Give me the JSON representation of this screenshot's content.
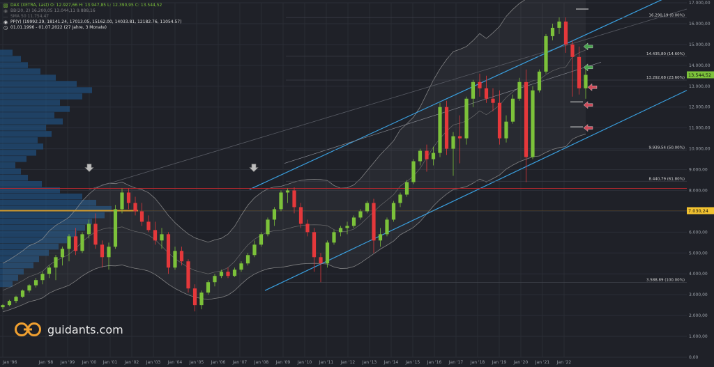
{
  "legend": {
    "main": "DAX (XETRA, Last)  O: 12.927,66  H: 13.947,85  L: 12.390,95  C: 13.544,52",
    "bb": "BB(20, 2)  16.200,05  13.044,11  9.888,16",
    "sma": "SMA 50  11.754,47",
    "pp": "PP(Y)  (19992.29, 18141.24, 17013.05, 15162.00, 14033.81, 12182.76, 11054.57)",
    "range": "01.01.1996 - 01.07.2022  (27 Jahre, 3 Monate)"
  },
  "logo_text": "guidants.com",
  "colors": {
    "background": "#1f2128",
    "up": "#7cc23a",
    "down": "#e5383b",
    "channel": "#3aa0e0",
    "bollinger": "#9a9a9a",
    "price_badge": "#7cc23a",
    "level_badge": "#f2c230",
    "red_line": "#b8282e",
    "orange_line": "#d49a2a",
    "green_arrow": "#4caf50",
    "red_arrow": "#e05060"
  },
  "icons": [
    "candle-icon",
    "eye-icon",
    "chart-icon",
    "clock-icon",
    "down-arrow-icon"
  ],
  "chart_data": {
    "type": "candlestick",
    "title": "DAX (XETRA, Last)",
    "y_ticks": [
      "17.000,00",
      "16.000,00",
      "15.000,00",
      "14.000,00",
      "13.000,00",
      "12.000,00",
      "11.000,00",
      "10.000,00",
      "9.000,00",
      "8.000,00",
      "7.000,00",
      "6.000,00",
      "5.000,00",
      "4.000,00",
      "3.000,00",
      "2.000,00",
      "1.000,00",
      "0,00"
    ],
    "x_ticks": [
      "Jan '96",
      "Jan '98",
      "Jan '99",
      "Jan '00",
      "Jan '01",
      "Jan '02",
      "Jan '03",
      "Jan '04",
      "Jan '05",
      "Jan '06",
      "Jan '07",
      "Jan '08",
      "Jan '09",
      "Jan '10",
      "Jan '11",
      "Jan '12",
      "Jan '13",
      "Jan '14",
      "Jan '15",
      "Jan '16",
      "Jan '17",
      "Jan '18",
      "Jan '19",
      "Jan '20",
      "Jan '21",
      "Jan '22"
    ],
    "ylim": [
      0,
      17000
    ],
    "price_badge": "13.544,52",
    "level_badge": "7.030,24",
    "fib_levels": [
      {
        "label": "16.290,19 (0.00%)",
        "value": 16290.19
      },
      {
        "label": "14.435,80 (14.60%)",
        "value": 14435.8
      },
      {
        "label": "13.292,68 (23.60%)",
        "value": 13292.68
      },
      {
        "label": "9.939,54 (50.00%)",
        "value": 9939.54
      },
      {
        "label": "8.440,79 (61.80%)",
        "value": 8440.79
      },
      {
        "label": "3.588,89 (100.00%)",
        "value": 3588.89
      }
    ],
    "horizontal_lines": [
      {
        "value": 8100,
        "role": "resistance"
      },
      {
        "value": 7030,
        "role": "level"
      }
    ],
    "candles": [
      {
        "o": 2400,
        "h": 2550,
        "l": 2300,
        "c": 2500
      },
      {
        "o": 2500,
        "h": 2750,
        "l": 2450,
        "c": 2700
      },
      {
        "o": 2700,
        "h": 2950,
        "l": 2600,
        "c": 2900
      },
      {
        "o": 2900,
        "h": 3250,
        "l": 2850,
        "c": 3200
      },
      {
        "o": 3200,
        "h": 3500,
        "l": 3100,
        "c": 3450
      },
      {
        "o": 3450,
        "h": 3800,
        "l": 3350,
        "c": 3700
      },
      {
        "o": 3700,
        "h": 4100,
        "l": 3500,
        "c": 4000
      },
      {
        "o": 4000,
        "h": 4400,
        "l": 3800,
        "c": 4300
      },
      {
        "o": 4300,
        "h": 4900,
        "l": 3700,
        "c": 4800
      },
      {
        "o": 4800,
        "h": 5300,
        "l": 4400,
        "c": 5200
      },
      {
        "o": 5200,
        "h": 5900,
        "l": 4600,
        "c": 5800
      },
      {
        "o": 5800,
        "h": 6200,
        "l": 4900,
        "c": 5100
      },
      {
        "o": 5100,
        "h": 6000,
        "l": 5000,
        "c": 5900
      },
      {
        "o": 5900,
        "h": 6600,
        "l": 5700,
        "c": 6400
      },
      {
        "o": 6400,
        "h": 6900,
        "l": 5200,
        "c": 5400
      },
      {
        "o": 5400,
        "h": 5600,
        "l": 4300,
        "c": 4800
      },
      {
        "o": 4800,
        "h": 5500,
        "l": 4200,
        "c": 5300
      },
      {
        "o": 5300,
        "h": 7300,
        "l": 5200,
        "c": 7100
      },
      {
        "o": 7100,
        "h": 8100,
        "l": 6900,
        "c": 7900
      },
      {
        "o": 7900,
        "h": 8100,
        "l": 7100,
        "c": 7400
      },
      {
        "o": 7400,
        "h": 7700,
        "l": 6800,
        "c": 7000
      },
      {
        "o": 7000,
        "h": 7400,
        "l": 6300,
        "c": 6500
      },
      {
        "o": 6500,
        "h": 6800,
        "l": 6000,
        "c": 6100
      },
      {
        "o": 6100,
        "h": 6500,
        "l": 5400,
        "c": 5600
      },
      {
        "o": 5600,
        "h": 6200,
        "l": 5200,
        "c": 5900
      },
      {
        "o": 5900,
        "h": 6000,
        "l": 4000,
        "c": 4300
      },
      {
        "o": 4300,
        "h": 5300,
        "l": 4200,
        "c": 5100
      },
      {
        "o": 5100,
        "h": 5300,
        "l": 4400,
        "c": 4600
      },
      {
        "o": 4600,
        "h": 4700,
        "l": 3100,
        "c": 3300
      },
      {
        "o": 3300,
        "h": 3500,
        "l": 2200,
        "c": 2500
      },
      {
        "o": 2500,
        "h": 3200,
        "l": 2300,
        "c": 3100
      },
      {
        "o": 3100,
        "h": 3700,
        "l": 3000,
        "c": 3600
      },
      {
        "o": 3600,
        "h": 4000,
        "l": 3400,
        "c": 3900
      },
      {
        "o": 3900,
        "h": 4200,
        "l": 3800,
        "c": 4100
      },
      {
        "o": 4100,
        "h": 4300,
        "l": 3800,
        "c": 3900
      },
      {
        "o": 3900,
        "h": 4300,
        "l": 3850,
        "c": 4200
      },
      {
        "o": 4200,
        "h": 4600,
        "l": 4100,
        "c": 4500
      },
      {
        "o": 4500,
        "h": 5000,
        "l": 4400,
        "c": 4900
      },
      {
        "o": 4900,
        "h": 5600,
        "l": 4800,
        "c": 5400
      },
      {
        "o": 5400,
        "h": 6000,
        "l": 5300,
        "c": 5900
      },
      {
        "o": 5900,
        "h": 6700,
        "l": 5800,
        "c": 6600
      },
      {
        "o": 6600,
        "h": 7200,
        "l": 6300,
        "c": 7100
      },
      {
        "o": 7100,
        "h": 8000,
        "l": 7000,
        "c": 7900
      },
      {
        "o": 7900,
        "h": 8100,
        "l": 7400,
        "c": 8000
      },
      {
        "o": 8000,
        "h": 8150,
        "l": 6900,
        "c": 7200
      },
      {
        "o": 7200,
        "h": 7400,
        "l": 6200,
        "c": 6400
      },
      {
        "o": 6400,
        "h": 6600,
        "l": 5800,
        "c": 6000
      },
      {
        "o": 6000,
        "h": 6200,
        "l": 4100,
        "c": 4800
      },
      {
        "o": 4800,
        "h": 5000,
        "l": 3600,
        "c": 4500
      },
      {
        "o": 4500,
        "h": 5600,
        "l": 4300,
        "c": 5500
      },
      {
        "o": 5500,
        "h": 6100,
        "l": 5400,
        "c": 6000
      },
      {
        "o": 6000,
        "h": 6300,
        "l": 5800,
        "c": 6200
      },
      {
        "o": 6200,
        "h": 6500,
        "l": 5900,
        "c": 6300
      },
      {
        "o": 6300,
        "h": 6800,
        "l": 6200,
        "c": 6700
      },
      {
        "o": 6700,
        "h": 7100,
        "l": 6600,
        "c": 7000
      },
      {
        "o": 7000,
        "h": 7500,
        "l": 6900,
        "c": 7400
      },
      {
        "o": 7400,
        "h": 7600,
        "l": 5000,
        "c": 5600
      },
      {
        "o": 5600,
        "h": 6200,
        "l": 5300,
        "c": 5900
      },
      {
        "o": 5900,
        "h": 6700,
        "l": 5800,
        "c": 6600
      },
      {
        "o": 6600,
        "h": 7500,
        "l": 6500,
        "c": 7400
      },
      {
        "o": 7400,
        "h": 7900,
        "l": 7200,
        "c": 7800
      },
      {
        "o": 7800,
        "h": 8500,
        "l": 7700,
        "c": 8400
      },
      {
        "o": 8400,
        "h": 9500,
        "l": 8300,
        "c": 9400
      },
      {
        "o": 9400,
        "h": 10000,
        "l": 9200,
        "c": 9900
      },
      {
        "o": 9900,
        "h": 10200,
        "l": 8900,
        "c": 9500
      },
      {
        "o": 9500,
        "h": 10100,
        "l": 9200,
        "c": 9800
      },
      {
        "o": 9800,
        "h": 12200,
        "l": 9600,
        "c": 12000
      },
      {
        "o": 12000,
        "h": 12300,
        "l": 9700,
        "c": 10000
      },
      {
        "o": 10000,
        "h": 10800,
        "l": 8700,
        "c": 10600
      },
      {
        "o": 10600,
        "h": 11600,
        "l": 9300,
        "c": 10500
      },
      {
        "o": 10500,
        "h": 12500,
        "l": 10200,
        "c": 12400
      },
      {
        "o": 12400,
        "h": 13300,
        "l": 12000,
        "c": 13200
      },
      {
        "o": 13200,
        "h": 13600,
        "l": 12500,
        "c": 12900
      },
      {
        "o": 12900,
        "h": 13500,
        "l": 12200,
        "c": 12400
      },
      {
        "o": 12400,
        "h": 12900,
        "l": 11800,
        "c": 12200
      },
      {
        "o": 12200,
        "h": 12800,
        "l": 10200,
        "c": 10500
      },
      {
        "o": 10500,
        "h": 11600,
        "l": 10300,
        "c": 11300
      },
      {
        "o": 11300,
        "h": 12600,
        "l": 11200,
        "c": 12400
      },
      {
        "o": 12400,
        "h": 13400,
        "l": 12300,
        "c": 13200
      },
      {
        "o": 13200,
        "h": 13800,
        "l": 8400,
        "c": 9600
      },
      {
        "o": 9600,
        "h": 13000,
        "l": 9500,
        "c": 12800
      },
      {
        "o": 12800,
        "h": 13800,
        "l": 12700,
        "c": 13700
      },
      {
        "o": 13700,
        "h": 15500,
        "l": 13600,
        "c": 15400
      },
      {
        "o": 15400,
        "h": 16000,
        "l": 15200,
        "c": 15800
      },
      {
        "o": 15800,
        "h": 16300,
        "l": 15500,
        "c": 16100
      },
      {
        "o": 16100,
        "h": 16300,
        "l": 14600,
        "c": 15000
      },
      {
        "o": 15000,
        "h": 15200,
        "l": 12500,
        "c": 14400
      },
      {
        "o": 14400,
        "h": 14900,
        "l": 12600,
        "c": 12900
      },
      {
        "o": 12900,
        "h": 13950,
        "l": 12400,
        "c": 13545
      }
    ]
  }
}
